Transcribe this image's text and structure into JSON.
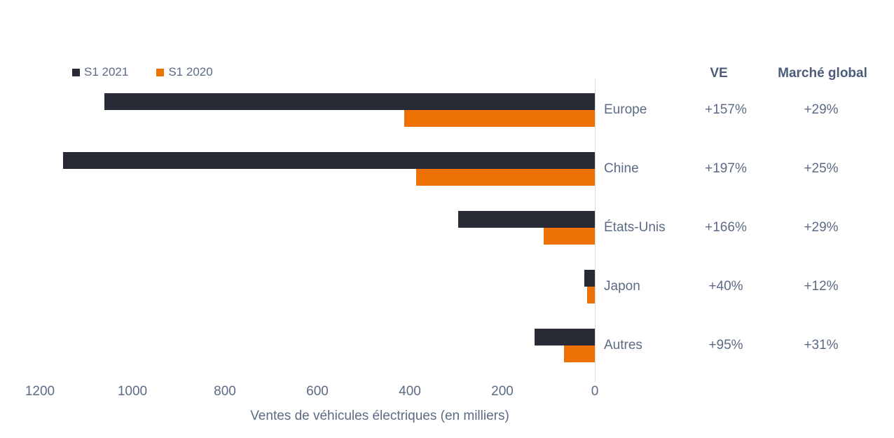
{
  "legend": {
    "items": [
      {
        "label": "S1 2021",
        "color": "#272b36"
      },
      {
        "label": "S1 2020",
        "color": "#ee7203"
      }
    ]
  },
  "chart_data": {
    "type": "bar",
    "orientation": "horizontal",
    "categories": [
      "Europe",
      "Chine",
      "États-Unis",
      "Japon",
      "Autres"
    ],
    "series": [
      {
        "name": "S1 2021",
        "color": "#272b36",
        "values": [
          1060,
          1150,
          296,
          23,
          130
        ]
      },
      {
        "name": "S1 2020",
        "color": "#ee7203",
        "values": [
          412,
          387,
          111,
          16,
          67
        ]
      }
    ],
    "xlabel": "Ventes de véhicules électriques (en milliers)",
    "x_ticks": [
      1200,
      1000,
      800,
      600,
      400,
      200,
      0
    ],
    "xlim": [
      0,
      1200
    ],
    "axis_reversed": true,
    "grid": false,
    "legend_position": "top-left"
  },
  "table": {
    "headers": {
      "ve": "VE",
      "market": "Marché global"
    },
    "rows": [
      {
        "country": "Europe",
        "ve": "+157%",
        "market": "+29%"
      },
      {
        "country": "Chine",
        "ve": "+197%",
        "market": "+25%"
      },
      {
        "country": "États-Unis",
        "ve": "+166%",
        "market": "+29%"
      },
      {
        "country": "Japon",
        "ve": "+40%",
        "market": "+12%"
      },
      {
        "country": "Autres",
        "ve": "+95%",
        "market": "+31%"
      }
    ]
  },
  "colors": {
    "s1_2021": "#272b36",
    "s1_2020": "#ee7203",
    "text": "#5b6b85",
    "header_text": "#4e5c7c",
    "axis_line": "#d9d9d9"
  }
}
